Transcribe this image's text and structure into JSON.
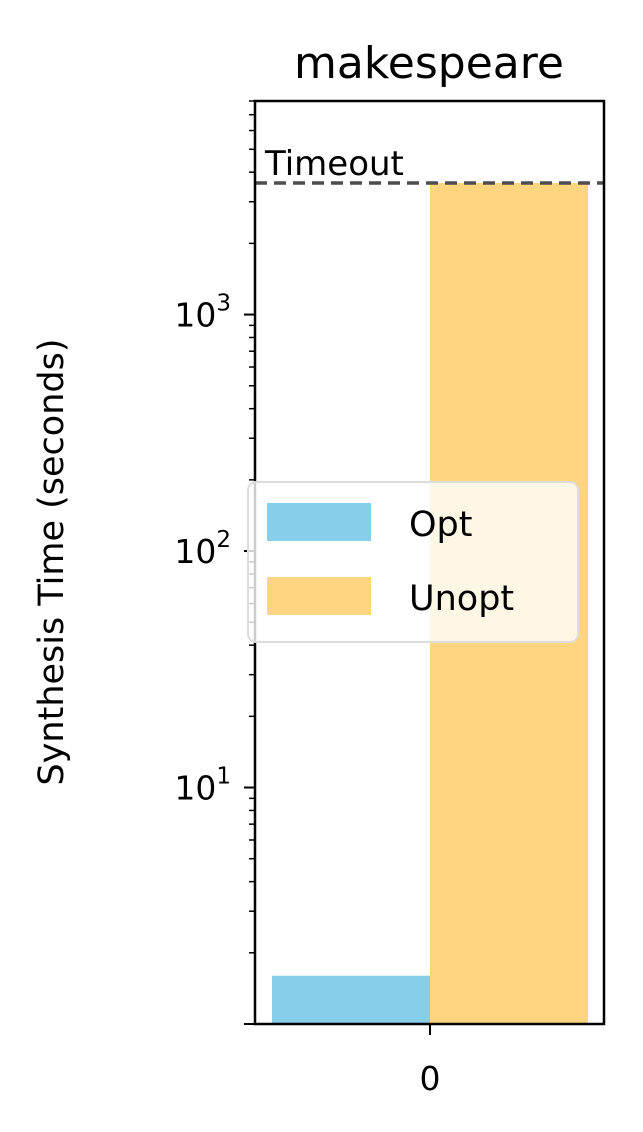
{
  "chart_data": {
    "type": "bar",
    "title": "makespeare",
    "xlabel": "",
    "ylabel": "Synthesis Time (seconds)",
    "yscale": "log",
    "ylim": [
      1.0,
      8000
    ],
    "categories": [
      "0"
    ],
    "series": [
      {
        "name": "Opt",
        "values": [
          1.6
        ],
        "color": "#87CEEB"
      },
      {
        "name": "Unopt",
        "values": [
          3600
        ],
        "color": "#FFD580"
      }
    ],
    "y_major_ticks": [
      {
        "value": 10,
        "base": "10",
        "exp": "1"
      },
      {
        "value": 100,
        "base": "10",
        "exp": "2"
      },
      {
        "value": 1000,
        "base": "10",
        "exp": "3"
      }
    ],
    "reference_line": {
      "value": 3600,
      "label": "Timeout",
      "style": "dashed",
      "color": "#4d4d4d"
    },
    "legend": {
      "placement": "center-right"
    },
    "grid": false
  }
}
